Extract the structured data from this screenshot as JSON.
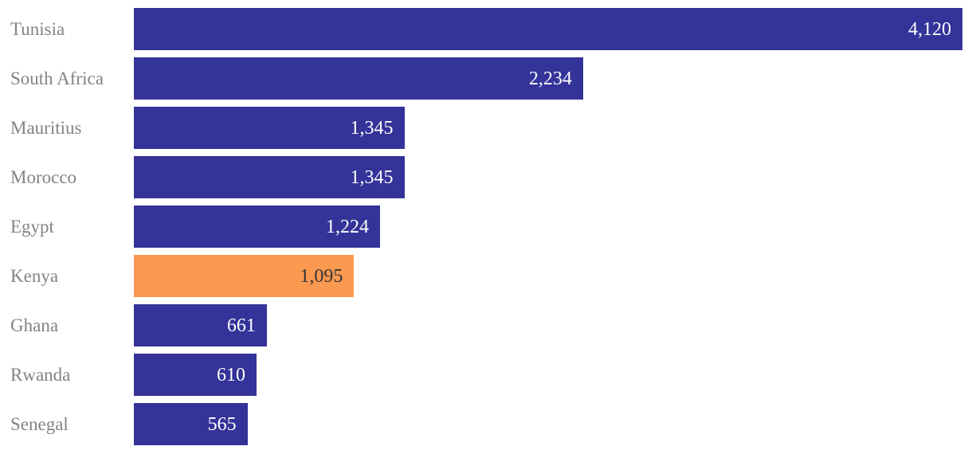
{
  "chart_data": {
    "type": "bar",
    "orientation": "horizontal",
    "categories": [
      "Tunisia",
      "South Africa",
      "Mauritius",
      "Morocco",
      "Egypt",
      "Kenya",
      "Ghana",
      "Rwanda",
      "Senegal"
    ],
    "values": [
      4120,
      2234,
      1345,
      1345,
      1224,
      1095,
      661,
      610,
      565
    ],
    "value_labels": [
      "4,120",
      "2,234",
      "1,345",
      "1,345",
      "1,224",
      "1,095",
      "661",
      "610",
      "565"
    ],
    "highlight_index": 5,
    "highlight_category": "Kenya",
    "xlim": [
      0,
      4120
    ],
    "grid": false,
    "legend": false,
    "axis_labels_visible": false,
    "value_label_position": "inside-end",
    "colors": {
      "bar": "#333399",
      "highlight_bar": "#FB9951",
      "category_label": "#838383",
      "value_label": "#FFFFFF",
      "highlight_value_label": "#333333",
      "background": "#FFFFFF"
    }
  }
}
